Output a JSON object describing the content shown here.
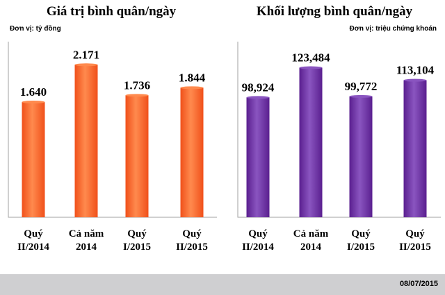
{
  "colors": {
    "left_bar": "#f0501a",
    "left_bar_highlight": "#ff8a4e",
    "right_bar": "#5a1f8f",
    "right_bar_highlight": "#8a55c0",
    "axis": "#a0a0a0"
  },
  "footer": {
    "date": "08/07/2015"
  },
  "chart_data": [
    {
      "type": "bar",
      "title": "Giá trị bình quân/ngày",
      "unit": "Đơn vị: tỷ đồng",
      "categories": [
        [
          "Quý",
          "II/2014"
        ],
        [
          "Cả năm",
          "2014"
        ],
        [
          "Quý",
          "I/2015"
        ],
        [
          "Quý",
          "II/2015"
        ]
      ],
      "values": [
        1640,
        2171,
        1736,
        1844
      ],
      "value_labels": [
        "1.640",
        "2.171",
        "1.736",
        "1.844"
      ],
      "ylim": [
        0,
        2500
      ],
      "grid": false,
      "legend": "none"
    },
    {
      "type": "bar",
      "title": "Khối lượng bình quân/ngày",
      "unit": "Đơn vị: triệu chứng khoán",
      "categories": [
        [
          "Quý",
          "II/2014"
        ],
        [
          "Cả năm",
          "2014"
        ],
        [
          "Quý",
          "I/2015"
        ],
        [
          "Quý",
          "II/2015"
        ]
      ],
      "values": [
        98924,
        123484,
        99772,
        113104
      ],
      "value_labels": [
        "98,924",
        "123,484",
        "99,772",
        "113,104"
      ],
      "ylim": [
        0,
        145000
      ],
      "grid": false,
      "legend": "none"
    }
  ]
}
